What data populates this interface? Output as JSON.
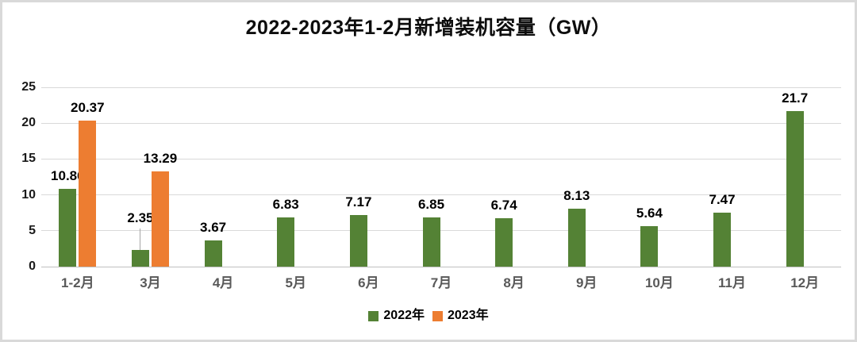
{
  "chart_data": {
    "type": "bar",
    "title": "2022-2023年1-2月新增装机容量（GW）",
    "categories": [
      "1-2月",
      "3月",
      "4月",
      "5月",
      "6月",
      "7月",
      "8月",
      "9月",
      "10月",
      "11月",
      "12月"
    ],
    "series": [
      {
        "name": "2022年",
        "color": "#548235",
        "values": [
          10.86,
          2.35,
          3.67,
          6.83,
          7.17,
          6.85,
          6.74,
          8.13,
          5.64,
          7.47,
          21.7
        ]
      },
      {
        "name": "2023年",
        "color": "#ED7D31",
        "values": [
          20.37,
          13.29,
          null,
          null,
          null,
          null,
          null,
          null,
          null,
          null,
          null
        ]
      }
    ],
    "ylim": [
      0,
      25
    ],
    "yticks": [
      0,
      5,
      10,
      15,
      20,
      25
    ],
    "grid": true,
    "data_labels": true,
    "legend_position": "bottom",
    "leader_line_points": [
      {
        "series_index": 0,
        "category_index": 1
      }
    ]
  },
  "colors": {
    "gridline": "#d9d9d9",
    "axis_line": "#bfbfbf",
    "x_tick_text": "#595959",
    "y_tick_text": "#1a1a1a",
    "data_label_text": "#000000",
    "frame_border": "#d9d9d9",
    "background": "#ffffff"
  }
}
